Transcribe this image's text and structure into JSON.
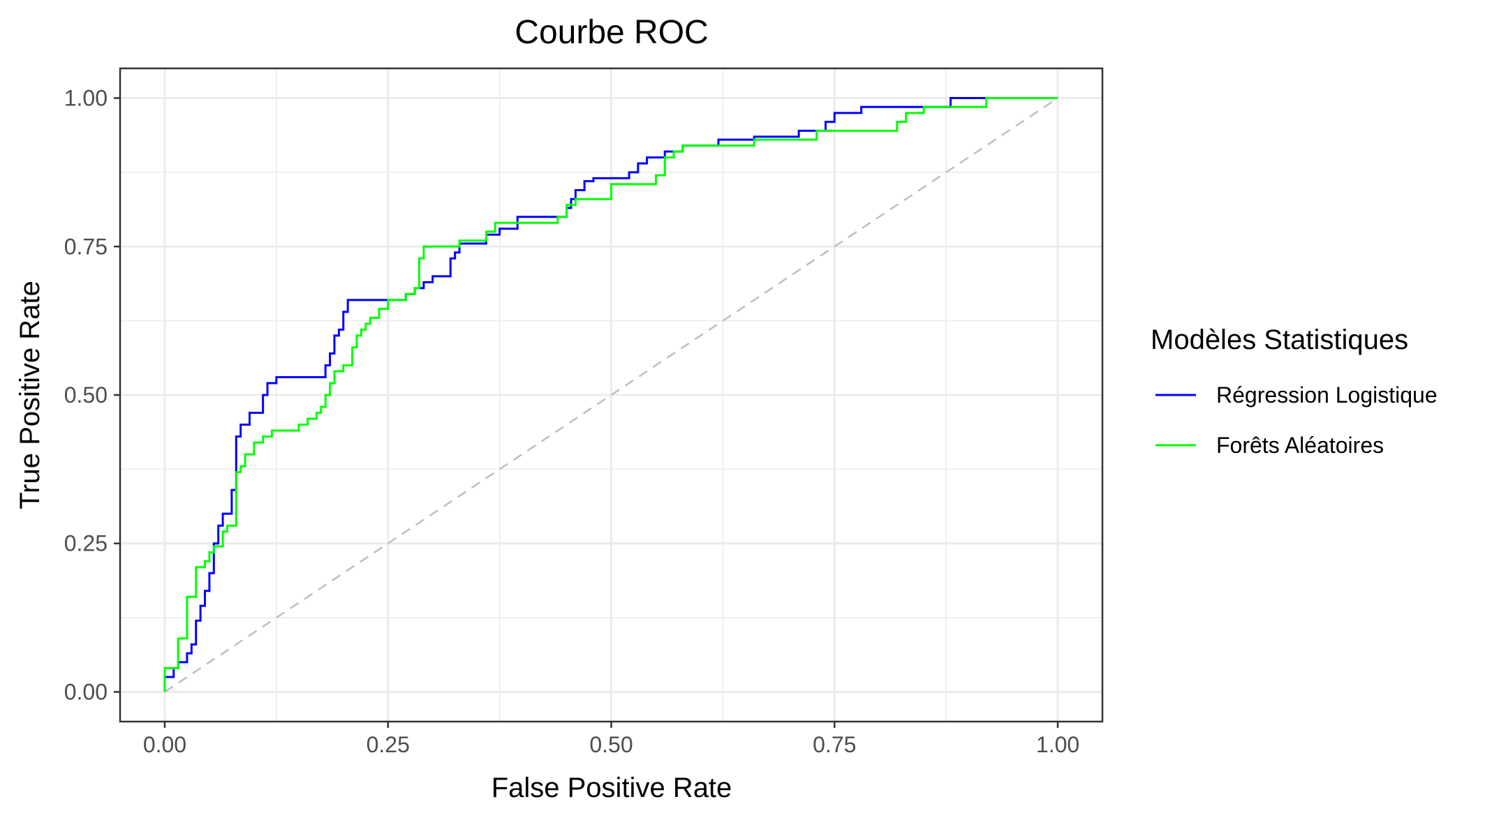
{
  "chart_data": {
    "type": "line",
    "title": "Courbe ROC",
    "xlabel": "False Positive Rate",
    "ylabel": "True Positive Rate",
    "xlim": [
      -0.05,
      1.05
    ],
    "ylim": [
      -0.05,
      1.05
    ],
    "x_ticks": [
      "0.00",
      "0.25",
      "0.50",
      "0.75",
      "1.00"
    ],
    "y_ticks": [
      "0.00",
      "0.25",
      "0.50",
      "0.75",
      "1.00"
    ],
    "grid": true,
    "legend_position": "right",
    "legend_title": "Modèles Statistiques",
    "series": [
      {
        "name": "Régression Logistique",
        "color": "#0000ff",
        "points": [
          [
            0,
            0
          ],
          [
            0,
            0.025
          ],
          [
            0.01,
            0.025
          ],
          [
            0.01,
            0.04
          ],
          [
            0.015,
            0.04
          ],
          [
            0.015,
            0.05
          ],
          [
            0.025,
            0.05
          ],
          [
            0.025,
            0.065
          ],
          [
            0.03,
            0.065
          ],
          [
            0.03,
            0.08
          ],
          [
            0.035,
            0.08
          ],
          [
            0.035,
            0.12
          ],
          [
            0.04,
            0.12
          ],
          [
            0.04,
            0.145
          ],
          [
            0.045,
            0.145
          ],
          [
            0.045,
            0.17
          ],
          [
            0.05,
            0.17
          ],
          [
            0.05,
            0.2
          ],
          [
            0.055,
            0.2
          ],
          [
            0.055,
            0.25
          ],
          [
            0.06,
            0.25
          ],
          [
            0.06,
            0.28
          ],
          [
            0.065,
            0.28
          ],
          [
            0.065,
            0.3
          ],
          [
            0.07,
            0.3
          ],
          [
            0.075,
            0.3
          ],
          [
            0.075,
            0.34
          ],
          [
            0.08,
            0.34
          ],
          [
            0.08,
            0.43
          ],
          [
            0.085,
            0.43
          ],
          [
            0.085,
            0.45
          ],
          [
            0.09,
            0.45
          ],
          [
            0.095,
            0.45
          ],
          [
            0.095,
            0.47
          ],
          [
            0.1,
            0.47
          ],
          [
            0.11,
            0.47
          ],
          [
            0.11,
            0.5
          ],
          [
            0.115,
            0.5
          ],
          [
            0.115,
            0.52
          ],
          [
            0.12,
            0.52
          ],
          [
            0.125,
            0.52
          ],
          [
            0.125,
            0.53
          ],
          [
            0.18,
            0.53
          ],
          [
            0.18,
            0.55
          ],
          [
            0.185,
            0.55
          ],
          [
            0.185,
            0.57
          ],
          [
            0.19,
            0.57
          ],
          [
            0.19,
            0.6
          ],
          [
            0.195,
            0.6
          ],
          [
            0.195,
            0.61
          ],
          [
            0.2,
            0.61
          ],
          [
            0.2,
            0.64
          ],
          [
            0.205,
            0.64
          ],
          [
            0.205,
            0.66
          ],
          [
            0.27,
            0.66
          ],
          [
            0.27,
            0.67
          ],
          [
            0.28,
            0.67
          ],
          [
            0.28,
            0.68
          ],
          [
            0.285,
            0.68
          ],
          [
            0.29,
            0.68
          ],
          [
            0.29,
            0.69
          ],
          [
            0.3,
            0.69
          ],
          [
            0.3,
            0.7
          ],
          [
            0.32,
            0.7
          ],
          [
            0.32,
            0.73
          ],
          [
            0.325,
            0.73
          ],
          [
            0.325,
            0.74
          ],
          [
            0.33,
            0.74
          ],
          [
            0.33,
            0.755
          ],
          [
            0.36,
            0.755
          ],
          [
            0.36,
            0.77
          ],
          [
            0.375,
            0.77
          ],
          [
            0.375,
            0.78
          ],
          [
            0.395,
            0.78
          ],
          [
            0.395,
            0.8
          ],
          [
            0.45,
            0.8
          ],
          [
            0.45,
            0.815
          ],
          [
            0.455,
            0.815
          ],
          [
            0.455,
            0.83
          ],
          [
            0.46,
            0.83
          ],
          [
            0.46,
            0.845
          ],
          [
            0.47,
            0.845
          ],
          [
            0.47,
            0.86
          ],
          [
            0.48,
            0.86
          ],
          [
            0.48,
            0.865
          ],
          [
            0.52,
            0.865
          ],
          [
            0.52,
            0.875
          ],
          [
            0.53,
            0.875
          ],
          [
            0.53,
            0.89
          ],
          [
            0.54,
            0.89
          ],
          [
            0.54,
            0.9
          ],
          [
            0.56,
            0.9
          ],
          [
            0.56,
            0.91
          ],
          [
            0.58,
            0.91
          ],
          [
            0.58,
            0.92
          ],
          [
            0.62,
            0.92
          ],
          [
            0.62,
            0.93
          ],
          [
            0.66,
            0.93
          ],
          [
            0.66,
            0.935
          ],
          [
            0.71,
            0.935
          ],
          [
            0.71,
            0.945
          ],
          [
            0.74,
            0.945
          ],
          [
            0.74,
            0.96
          ],
          [
            0.75,
            0.96
          ],
          [
            0.75,
            0.975
          ],
          [
            0.78,
            0.975
          ],
          [
            0.78,
            0.985
          ],
          [
            0.88,
            0.985
          ],
          [
            0.88,
            1.0
          ],
          [
            1.0,
            1.0
          ]
        ]
      },
      {
        "name": "Forêts Aléatoires",
        "color": "#00ff00",
        "points": [
          [
            0,
            0
          ],
          [
            0,
            0.04
          ],
          [
            0.015,
            0.04
          ],
          [
            0.015,
            0.09
          ],
          [
            0.02,
            0.09
          ],
          [
            0.02,
            0.09
          ],
          [
            0.025,
            0.09
          ],
          [
            0.025,
            0.16
          ],
          [
            0.035,
            0.16
          ],
          [
            0.035,
            0.21
          ],
          [
            0.04,
            0.21
          ],
          [
            0.045,
            0.21
          ],
          [
            0.045,
            0.22
          ],
          [
            0.05,
            0.22
          ],
          [
            0.05,
            0.235
          ],
          [
            0.055,
            0.235
          ],
          [
            0.055,
            0.245
          ],
          [
            0.06,
            0.245
          ],
          [
            0.065,
            0.245
          ],
          [
            0.065,
            0.27
          ],
          [
            0.07,
            0.27
          ],
          [
            0.07,
            0.28
          ],
          [
            0.08,
            0.28
          ],
          [
            0.08,
            0.37
          ],
          [
            0.085,
            0.37
          ],
          [
            0.085,
            0.38
          ],
          [
            0.09,
            0.38
          ],
          [
            0.09,
            0.4
          ],
          [
            0.095,
            0.4
          ],
          [
            0.1,
            0.4
          ],
          [
            0.1,
            0.42
          ],
          [
            0.11,
            0.42
          ],
          [
            0.11,
            0.43
          ],
          [
            0.12,
            0.43
          ],
          [
            0.12,
            0.44
          ],
          [
            0.15,
            0.44
          ],
          [
            0.15,
            0.45
          ],
          [
            0.16,
            0.45
          ],
          [
            0.16,
            0.46
          ],
          [
            0.17,
            0.46
          ],
          [
            0.17,
            0.47
          ],
          [
            0.175,
            0.47
          ],
          [
            0.175,
            0.48
          ],
          [
            0.18,
            0.48
          ],
          [
            0.18,
            0.5
          ],
          [
            0.185,
            0.5
          ],
          [
            0.185,
            0.52
          ],
          [
            0.19,
            0.52
          ],
          [
            0.19,
            0.54
          ],
          [
            0.2,
            0.54
          ],
          [
            0.2,
            0.55
          ],
          [
            0.21,
            0.55
          ],
          [
            0.21,
            0.58
          ],
          [
            0.215,
            0.58
          ],
          [
            0.215,
            0.6
          ],
          [
            0.22,
            0.6
          ],
          [
            0.22,
            0.61
          ],
          [
            0.225,
            0.61
          ],
          [
            0.225,
            0.62
          ],
          [
            0.23,
            0.62
          ],
          [
            0.23,
            0.63
          ],
          [
            0.24,
            0.63
          ],
          [
            0.24,
            0.645
          ],
          [
            0.25,
            0.645
          ],
          [
            0.25,
            0.66
          ],
          [
            0.27,
            0.66
          ],
          [
            0.27,
            0.67
          ],
          [
            0.28,
            0.67
          ],
          [
            0.28,
            0.68
          ],
          [
            0.285,
            0.68
          ],
          [
            0.285,
            0.73
          ],
          [
            0.29,
            0.73
          ],
          [
            0.29,
            0.75
          ],
          [
            0.33,
            0.75
          ],
          [
            0.33,
            0.76
          ],
          [
            0.36,
            0.76
          ],
          [
            0.36,
            0.775
          ],
          [
            0.37,
            0.775
          ],
          [
            0.37,
            0.79
          ],
          [
            0.44,
            0.79
          ],
          [
            0.44,
            0.8
          ],
          [
            0.45,
            0.8
          ],
          [
            0.45,
            0.82
          ],
          [
            0.46,
            0.82
          ],
          [
            0.46,
            0.83
          ],
          [
            0.5,
            0.83
          ],
          [
            0.5,
            0.855
          ],
          [
            0.55,
            0.855
          ],
          [
            0.55,
            0.87
          ],
          [
            0.56,
            0.87
          ],
          [
            0.56,
            0.9
          ],
          [
            0.57,
            0.9
          ],
          [
            0.57,
            0.91
          ],
          [
            0.58,
            0.91
          ],
          [
            0.58,
            0.92
          ],
          [
            0.66,
            0.92
          ],
          [
            0.66,
            0.93
          ],
          [
            0.73,
            0.93
          ],
          [
            0.73,
            0.945
          ],
          [
            0.82,
            0.945
          ],
          [
            0.82,
            0.96
          ],
          [
            0.83,
            0.96
          ],
          [
            0.83,
            0.975
          ],
          [
            0.85,
            0.975
          ],
          [
            0.85,
            0.985
          ],
          [
            0.92,
            0.985
          ],
          [
            0.92,
            1.0
          ],
          [
            1.0,
            1.0
          ]
        ]
      }
    ],
    "reference_line": {
      "from": [
        0,
        0
      ],
      "to": [
        1,
        1
      ],
      "color": "#bebebe",
      "dashed": true
    }
  }
}
